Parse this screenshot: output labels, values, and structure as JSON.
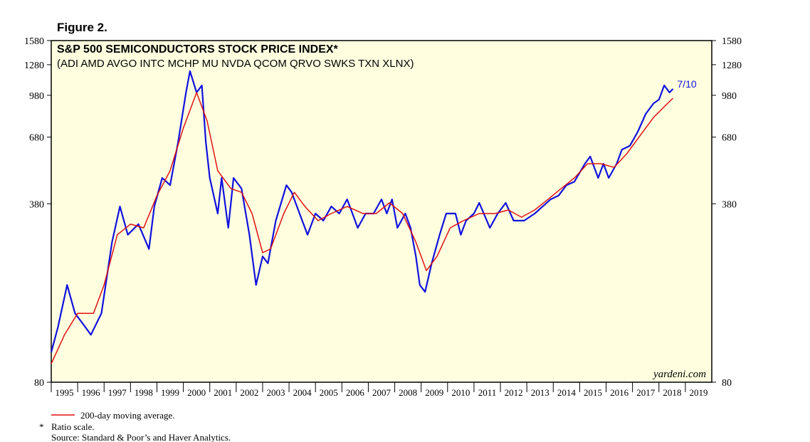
{
  "chart_data": {
    "type": "line",
    "figure_label": "Figure 2.",
    "title": "S&P 500 SEMICONDUCTORS STOCK PRICE INDEX*",
    "subtitle": "(ADI AMD AVGO INTC MCHP MU NVDA QCOM QRVO SWKS TXN XLNX)",
    "end_label": "7/10",
    "watermark": "yardeni.com",
    "footnote_marker": "*",
    "footnote": "Ratio scale.",
    "source": "Source: Standard & Poor’s and Haver Analytics.",
    "log_scale": true,
    "background": "#ffffe0",
    "xlim": [
      1995,
      2020
    ],
    "xticks": [
      1995,
      1996,
      1997,
      1998,
      1999,
      2000,
      2001,
      2002,
      2003,
      2004,
      2005,
      2006,
      2007,
      2008,
      2009,
      2010,
      2011,
      2012,
      2013,
      2014,
      2015,
      2016,
      2017,
      2018,
      2019
    ],
    "ylim": [
      80,
      1580
    ],
    "yticks": [
      80,
      380,
      680,
      980,
      1280,
      1580
    ],
    "series": [
      {
        "color": "#1010e0",
        "x": [
          1995.0,
          1995.25,
          1995.6,
          1995.9,
          1996.3,
          1996.5,
          1996.9,
          1997.3,
          1997.6,
          1997.9,
          1998.3,
          1998.7,
          1998.9,
          1999.2,
          1999.5,
          1999.8,
          2000.1,
          2000.25,
          2000.5,
          2000.7,
          2000.85,
          2001.0,
          2001.3,
          2001.45,
          2001.7,
          2001.9,
          2002.2,
          2002.5,
          2002.75,
          2003.0,
          2003.2,
          2003.5,
          2003.9,
          2004.1,
          2004.5,
          2004.7,
          2005.0,
          2005.3,
          2005.6,
          2005.9,
          2006.2,
          2006.4,
          2006.6,
          2006.9,
          2007.2,
          2007.5,
          2007.7,
          2007.9,
          2008.1,
          2008.4,
          2008.6,
          2008.8,
          2008.95,
          2009.15,
          2009.4,
          2009.7,
          2009.95,
          2010.3,
          2010.5,
          2010.7,
          2011.0,
          2011.2,
          2011.6,
          2011.9,
          2012.2,
          2012.5,
          2012.9,
          2013.3,
          2013.6,
          2013.9,
          2014.2,
          2014.5,
          2014.8,
          2015.2,
          2015.4,
          2015.7,
          2015.9,
          2016.1,
          2016.4,
          2016.6,
          2016.9,
          2017.2,
          2017.5,
          2017.8,
          2018.0,
          2018.2,
          2018.4,
          2018.53
        ],
        "values": [
          104,
          129,
          187,
          146,
          129,
          121,
          146,
          272,
          371,
          290,
          318,
          256,
          371,
          476,
          447,
          650,
          1004,
          1210,
          1004,
          1068,
          650,
          476,
          349,
          476,
          308,
          476,
          434,
          290,
          187,
          240,
          226,
          328,
          447,
          420,
          328,
          290,
          349,
          328,
          371,
          349,
          395,
          349,
          308,
          349,
          349,
          395,
          349,
          395,
          308,
          349,
          308,
          240,
          187,
          176,
          226,
          290,
          349,
          349,
          290,
          328,
          349,
          383,
          308,
          349,
          383,
          328,
          328,
          349,
          371,
          395,
          408,
          447,
          461,
          539,
          574,
          476,
          539,
          476,
          539,
          610,
          630,
          713,
          833,
          914,
          943,
          1068,
          1004,
          1036
        ]
      },
      {
        "name": "200-day moving average.",
        "color": "#e01010",
        "x": [
          1995.0,
          1995.5,
          1996.0,
          1996.6,
          1997.0,
          1997.5,
          1998.0,
          1998.5,
          1999.0,
          1999.5,
          2000.0,
          2000.5,
          2000.9,
          2001.3,
          2001.8,
          2002.2,
          2002.6,
          2003.0,
          2003.3,
          2003.8,
          2004.2,
          2004.6,
          2005.1,
          2005.6,
          2006.2,
          2006.8,
          2007.3,
          2007.8,
          2008.3,
          2008.8,
          2009.2,
          2009.6,
          2010.1,
          2010.6,
          2011.2,
          2011.8,
          2012.3,
          2012.8,
          2013.3,
          2013.8,
          2014.3,
          2014.8,
          2015.3,
          2015.8,
          2016.3,
          2016.8,
          2017.3,
          2017.8,
          2018.2,
          2018.53
        ],
        "values": [
          94,
          121,
          146,
          146,
          187,
          290,
          318,
          308,
          408,
          507,
          736,
          1004,
          783,
          507,
          434,
          420,
          349,
          248,
          256,
          349,
          420,
          371,
          328,
          349,
          371,
          349,
          349,
          383,
          349,
          272,
          212,
          240,
          308,
          328,
          349,
          349,
          360,
          338,
          360,
          395,
          434,
          476,
          539,
          539,
          522,
          591,
          692,
          808,
          887,
          955
        ]
      }
    ]
  }
}
